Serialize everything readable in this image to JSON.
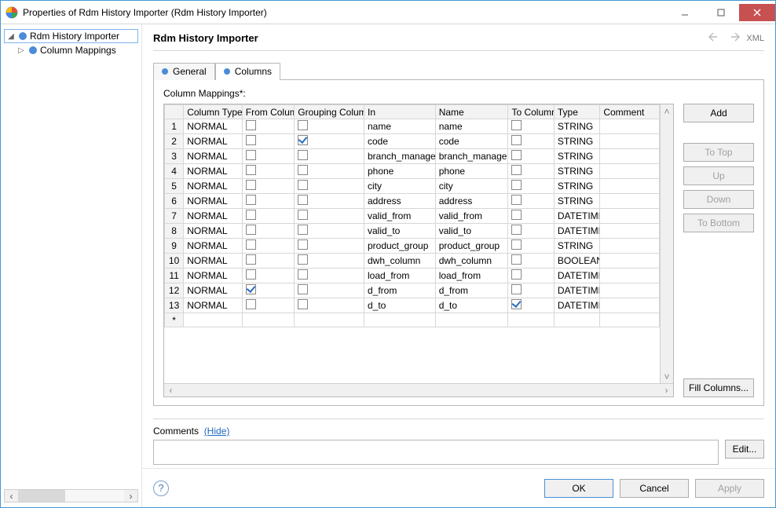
{
  "window": {
    "title": "Properties of Rdm History Importer (Rdm History Importer)"
  },
  "tree": {
    "items": [
      {
        "label": "Rdm History Importer",
        "expander": "◢",
        "selected": true
      },
      {
        "label": "Column Mappings",
        "expander": "▷",
        "indent": 1
      }
    ]
  },
  "header": {
    "title": "Rdm History Importer",
    "xml": "XML"
  },
  "tabs": {
    "general": "General",
    "columns": "Columns",
    "active": "columns"
  },
  "section": {
    "label": "Column Mappings*:"
  },
  "table": {
    "columns": [
      "",
      "Column Type",
      "From Column",
      "Grouping Column",
      "In",
      "Name",
      "To Column",
      "Type",
      "Comment"
    ],
    "col_widths": [
      "24px",
      "74px",
      "66px",
      "88px",
      "90px",
      "92px",
      "58px",
      "58px",
      "75px"
    ],
    "rows": [
      {
        "n": "1",
        "ct": "NORMAL",
        "fc": false,
        "gc": false,
        "in": "name",
        "name": "name",
        "tc": false,
        "type": "STRING",
        "comment": ""
      },
      {
        "n": "2",
        "ct": "NORMAL",
        "fc": false,
        "gc": true,
        "in": "code",
        "name": "code",
        "tc": false,
        "type": "STRING",
        "comment": ""
      },
      {
        "n": "3",
        "ct": "NORMAL",
        "fc": false,
        "gc": false,
        "in": "branch_manager",
        "name": "branch_manager",
        "tc": false,
        "type": "STRING",
        "comment": ""
      },
      {
        "n": "4",
        "ct": "NORMAL",
        "fc": false,
        "gc": false,
        "in": "phone",
        "name": "phone",
        "tc": false,
        "type": "STRING",
        "comment": ""
      },
      {
        "n": "5",
        "ct": "NORMAL",
        "fc": false,
        "gc": false,
        "in": "city",
        "name": "city",
        "tc": false,
        "type": "STRING",
        "comment": ""
      },
      {
        "n": "6",
        "ct": "NORMAL",
        "fc": false,
        "gc": false,
        "in": "address",
        "name": "address",
        "tc": false,
        "type": "STRING",
        "comment": ""
      },
      {
        "n": "7",
        "ct": "NORMAL",
        "fc": false,
        "gc": false,
        "in": "valid_from",
        "name": "valid_from",
        "tc": false,
        "type": "DATETIME",
        "comment": ""
      },
      {
        "n": "8",
        "ct": "NORMAL",
        "fc": false,
        "gc": false,
        "in": "valid_to",
        "name": "valid_to",
        "tc": false,
        "type": "DATETIME",
        "comment": ""
      },
      {
        "n": "9",
        "ct": "NORMAL",
        "fc": false,
        "gc": false,
        "in": "product_group",
        "name": "product_group",
        "tc": false,
        "type": "STRING",
        "comment": ""
      },
      {
        "n": "10",
        "ct": "NORMAL",
        "fc": false,
        "gc": false,
        "in": "dwh_column",
        "name": "dwh_column",
        "tc": false,
        "type": "BOOLEAN",
        "comment": ""
      },
      {
        "n": "11",
        "ct": "NORMAL",
        "fc": false,
        "gc": false,
        "in": "load_from",
        "name": "load_from",
        "tc": false,
        "type": "DATETIME",
        "comment": ""
      },
      {
        "n": "12",
        "ct": "NORMAL",
        "fc": true,
        "gc": false,
        "in": "d_from",
        "name": "d_from",
        "tc": false,
        "type": "DATETIME",
        "comment": ""
      },
      {
        "n": "13",
        "ct": "NORMAL",
        "fc": false,
        "gc": false,
        "in": "d_to",
        "name": "d_to",
        "tc": true,
        "type": "DATETIME",
        "comment": ""
      }
    ],
    "new_row_marker": "*"
  },
  "buttons": {
    "add": "Add",
    "to_top": "To Top",
    "up": "Up",
    "down": "Down",
    "to_bottom": "To Bottom",
    "fill": "Fill Columns..."
  },
  "comments": {
    "label": "Comments",
    "hide": "(Hide)",
    "value": "",
    "edit": "Edit..."
  },
  "footer": {
    "ok": "OK",
    "cancel": "Cancel",
    "apply": "Apply"
  },
  "colors": {
    "accent": "#4b8bd9",
    "close_bg": "#c75050",
    "border": "#b9b9b9"
  }
}
